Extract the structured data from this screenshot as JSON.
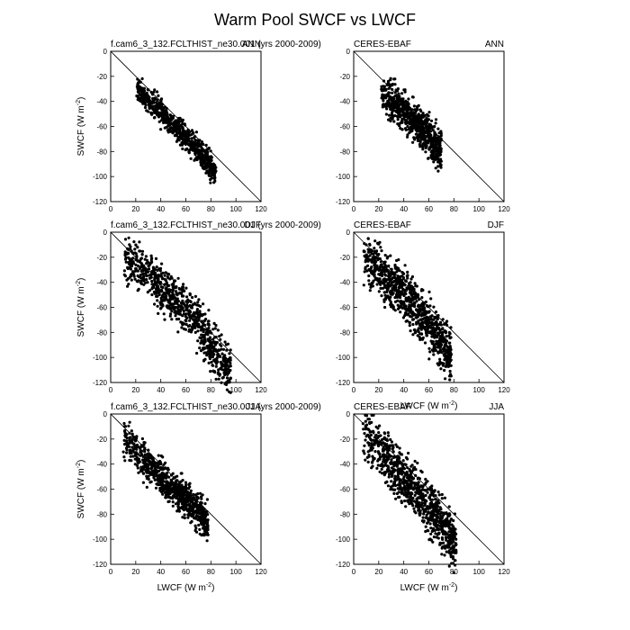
{
  "figure": {
    "title": "Warm Pool SWCF vs LWCF"
  },
  "chart_data": [
    {
      "type": "scatter",
      "left_title": "f.cam6_3_132.FCLTHIST_ne30.001 (yrs 2000-2009)",
      "right_title": "ANN",
      "xlabel": "",
      "ylabel": "SWCF (W m",
      "ylabel_sup": "-2",
      "ylabel_end": ")",
      "xlim": [
        0,
        120
      ],
      "ylim": [
        -120,
        0
      ],
      "xticks": [
        0,
        20,
        40,
        60,
        80,
        100,
        120
      ],
      "yticks": [
        0,
        -20,
        -40,
        -60,
        -80,
        -100,
        -120
      ],
      "reference_line": "y = -x",
      "point_cloud": {
        "x_range": [
          20,
          84
        ],
        "approx_points": 700,
        "spine": [
          [
            20,
            -29
          ],
          [
            30,
            -40
          ],
          [
            40,
            -49
          ],
          [
            50,
            -58
          ],
          [
            60,
            -68
          ],
          [
            70,
            -80
          ],
          [
            80,
            -92
          ],
          [
            84,
            -98
          ]
        ],
        "spread": 5
      }
    },
    {
      "type": "scatter",
      "left_title": "CERES-EBAF",
      "right_title": "ANN",
      "xlabel": "",
      "ylabel": "",
      "xlim": [
        0,
        120
      ],
      "ylim": [
        -120,
        0
      ],
      "xticks": [
        0,
        20,
        40,
        60,
        80,
        100,
        120
      ],
      "yticks": [
        0,
        -20,
        -40,
        -60,
        -80,
        -100,
        -120
      ],
      "reference_line": "y = -x",
      "point_cloud": {
        "x_range": [
          22,
          70
        ],
        "approx_points": 700,
        "spine": [
          [
            22,
            -35
          ],
          [
            30,
            -40
          ],
          [
            40,
            -48
          ],
          [
            50,
            -58
          ],
          [
            60,
            -68
          ],
          [
            70,
            -82
          ]
        ],
        "spread": 8
      }
    },
    {
      "type": "scatter",
      "left_title": "f.cam6_3_132.FCLTHIST_ne30.001 (yrs 2000-2009)",
      "right_title": "DJF",
      "xlabel": "",
      "ylabel": "SWCF (W m",
      "ylabel_sup": "-2",
      "ylabel_end": ")",
      "xlim": [
        0,
        120
      ],
      "ylim": [
        -120,
        0
      ],
      "xticks": [
        0,
        20,
        40,
        60,
        80,
        100,
        120
      ],
      "yticks": [
        0,
        -20,
        -40,
        -60,
        -80,
        -100,
        -120
      ],
      "reference_line": "y = -x",
      "point_cloud": {
        "x_range": [
          10,
          96
        ],
        "approx_points": 800,
        "spine": [
          [
            10,
            -20
          ],
          [
            20,
            -25
          ],
          [
            30,
            -33
          ],
          [
            40,
            -45
          ],
          [
            50,
            -52
          ],
          [
            60,
            -62
          ],
          [
            70,
            -75
          ],
          [
            80,
            -90
          ],
          [
            90,
            -105
          ],
          [
            96,
            -110
          ]
        ],
        "spread": 9
      }
    },
    {
      "type": "scatter",
      "left_title": "CERES-EBAF",
      "right_title": "DJF",
      "xlabel": "LWCF (W m",
      "xlabel_sup": "-2",
      "xlabel_end": ")",
      "ylabel": "",
      "xlim": [
        0,
        120
      ],
      "ylim": [
        -120,
        0
      ],
      "xticks": [
        0,
        20,
        40,
        60,
        80,
        100,
        120
      ],
      "yticks": [
        0,
        -20,
        -40,
        -60,
        -80,
        -100,
        -120
      ],
      "reference_line": "y = -x",
      "point_cloud": {
        "x_range": [
          8,
          78
        ],
        "approx_points": 900,
        "spine": [
          [
            8,
            -22
          ],
          [
            20,
            -30
          ],
          [
            30,
            -40
          ],
          [
            40,
            -50
          ],
          [
            50,
            -62
          ],
          [
            60,
            -75
          ],
          [
            70,
            -88
          ],
          [
            78,
            -100
          ]
        ],
        "spread": 10
      }
    },
    {
      "type": "scatter",
      "left_title": "f.cam6_3_132.FCLTHIST_ne30.001 (yrs 2000-2009)",
      "right_title": "JJA",
      "xlabel": "LWCF (W m",
      "xlabel_sup": "-2",
      "xlabel_end": ")",
      "ylabel": "SWCF (W m",
      "ylabel_sup": "-2",
      "ylabel_end": ")",
      "xlim": [
        0,
        120
      ],
      "ylim": [
        -120,
        0
      ],
      "xticks": [
        0,
        20,
        40,
        60,
        80,
        100,
        120
      ],
      "yticks": [
        0,
        -20,
        -40,
        -60,
        -80,
        -100,
        -120
      ],
      "reference_line": "y = -x",
      "point_cloud": {
        "x_range": [
          10,
          78
        ],
        "approx_points": 800,
        "spine": [
          [
            10,
            -20
          ],
          [
            20,
            -30
          ],
          [
            30,
            -40
          ],
          [
            40,
            -50
          ],
          [
            50,
            -60
          ],
          [
            60,
            -68
          ],
          [
            70,
            -78
          ],
          [
            78,
            -90
          ]
        ],
        "spread": 7
      }
    },
    {
      "type": "scatter",
      "left_title": "CERES-EBAF",
      "right_title": "JJA",
      "xlabel": "LWCF (W m",
      "xlabel_sup": "-2",
      "xlabel_end": ")",
      "ylabel": "",
      "xlim": [
        0,
        120
      ],
      "ylim": [
        -120,
        0
      ],
      "xticks": [
        0,
        20,
        40,
        60,
        80,
        100,
        120
      ],
      "yticks": [
        0,
        -20,
        -40,
        -60,
        -80,
        -100,
        -120
      ],
      "reference_line": "y = -x",
      "point_cloud": {
        "x_range": [
          7,
          82
        ],
        "approx_points": 900,
        "spine": [
          [
            7,
            -12
          ],
          [
            20,
            -28
          ],
          [
            30,
            -40
          ],
          [
            40,
            -52
          ],
          [
            50,
            -62
          ],
          [
            60,
            -75
          ],
          [
            70,
            -88
          ],
          [
            82,
            -105
          ]
        ],
        "spread": 10
      }
    }
  ]
}
